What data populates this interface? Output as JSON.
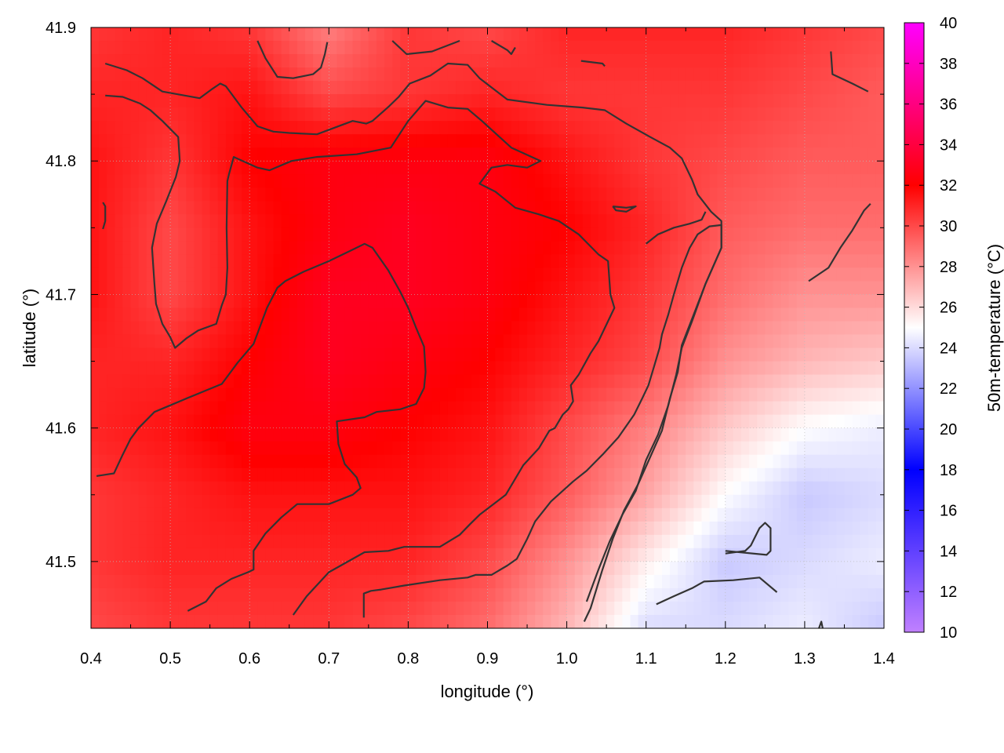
{
  "chart_data": {
    "type": "heatmap",
    "xlabel": "longitude (°)",
    "ylabel": "latitude (°)",
    "colorbar_label": "50m-temperature (°C)",
    "xlim": [
      0.4,
      1.4
    ],
    "ylim": [
      41.45,
      41.9
    ],
    "xticks": [
      "0.4",
      "0.5",
      "0.6",
      "0.7",
      "0.8",
      "0.9",
      "1.0",
      "1.1",
      "1.2",
      "1.3",
      "1.4"
    ],
    "yticks": [
      "41.5",
      "41.6",
      "41.7",
      "41.8",
      "41.9"
    ],
    "colorbar_range": [
      10,
      40
    ],
    "colorbar_ticks": [
      "10",
      "12",
      "14",
      "16",
      "18",
      "20",
      "22",
      "24",
      "26",
      "28",
      "30",
      "32",
      "34",
      "36",
      "38",
      "40"
    ],
    "colormap": [
      {
        "value": 10,
        "color": "#c080ff"
      },
      {
        "value": 18,
        "color": "#0000ff"
      },
      {
        "value": 25,
        "color": "#ffffff"
      },
      {
        "value": 32,
        "color": "#ff0000"
      },
      {
        "value": 40,
        "color": "#ff00ff"
      }
    ],
    "grid": true,
    "grid_style": "dotted",
    "contour_color": "#333333",
    "temperature_grid": {
      "lon": [
        0.4,
        0.5,
        0.6,
        0.7,
        0.8,
        0.9,
        1.0,
        1.1,
        1.2,
        1.3,
        1.4
      ],
      "lat": [
        41.9,
        41.85,
        41.8,
        41.75,
        41.7,
        41.65,
        41.6,
        41.55,
        41.5,
        41.45
      ],
      "values": [
        [
          30.5,
          31.0,
          30.5,
          28.5,
          30.5,
          30.0,
          31.0,
          31.0,
          31.0,
          30.5,
          30.0
        ],
        [
          31.0,
          31.0,
          31.5,
          30.0,
          30.5,
          31.0,
          30.5,
          30.5,
          30.5,
          30.0,
          29.5
        ],
        [
          31.5,
          30.5,
          32.0,
          32.5,
          32.5,
          32.5,
          31.5,
          30.5,
          30.0,
          29.5,
          29.5
        ],
        [
          31.5,
          30.0,
          31.5,
          32.5,
          33.0,
          32.5,
          32.0,
          31.0,
          29.5,
          29.0,
          29.0
        ],
        [
          31.5,
          30.0,
          31.5,
          33.0,
          33.0,
          32.5,
          31.5,
          30.5,
          29.0,
          28.0,
          28.0
        ],
        [
          31.0,
          31.0,
          32.0,
          33.0,
          32.5,
          32.0,
          31.0,
          30.0,
          28.0,
          27.0,
          26.5
        ],
        [
          31.0,
          31.5,
          32.5,
          32.5,
          32.0,
          31.5,
          30.0,
          28.5,
          26.5,
          25.0,
          24.5
        ],
        [
          30.5,
          31.0,
          31.5,
          31.5,
          31.5,
          31.0,
          29.5,
          27.5,
          25.0,
          23.5,
          24.0
        ],
        [
          30.5,
          31.0,
          31.0,
          31.0,
          31.0,
          30.0,
          28.0,
          25.5,
          23.5,
          24.0,
          24.5
        ],
        [
          30.0,
          30.5,
          30.5,
          30.5,
          30.0,
          29.0,
          27.0,
          24.0,
          24.0,
          24.5,
          23.5
        ]
      ]
    },
    "contours": [
      [
        [
          0.418,
          41.873
        ],
        [
          0.445,
          41.868
        ],
        [
          0.465,
          41.862
        ],
        [
          0.49,
          41.852
        ],
        [
          0.537,
          41.847
        ],
        [
          0.553,
          41.854
        ],
        [
          0.563,
          41.858
        ],
        [
          0.57,
          41.856
        ],
        [
          0.59,
          41.84
        ],
        [
          0.61,
          41.826
        ],
        [
          0.63,
          41.822
        ],
        [
          0.65,
          41.821
        ],
        [
          0.685,
          41.82
        ],
        [
          0.73,
          41.83
        ],
        [
          0.747,
          41.828
        ],
        [
          0.755,
          41.83
        ],
        [
          0.776,
          41.841
        ],
        [
          0.788,
          41.848
        ],
        [
          0.802,
          41.858
        ],
        [
          0.828,
          41.864
        ],
        [
          0.85,
          41.873
        ],
        [
          0.875,
          41.872
        ],
        [
          0.89,
          41.862
        ],
        [
          0.925,
          41.846
        ],
        [
          0.975,
          41.842
        ],
        [
          1.02,
          41.84
        ],
        [
          1.048,
          41.838
        ],
        [
          1.075,
          41.828
        ],
        [
          1.105,
          41.818
        ],
        [
          1.13,
          41.81
        ],
        [
          1.145,
          41.802
        ],
        [
          1.158,
          41.786
        ],
        [
          1.165,
          41.775
        ],
        [
          1.182,
          41.762
        ],
        [
          1.195,
          41.755
        ],
        [
          1.195,
          41.735
        ],
        [
          1.175,
          41.708
        ],
        [
          1.16,
          41.685
        ],
        [
          1.145,
          41.662
        ],
        [
          1.14,
          41.642
        ],
        [
          1.13,
          41.622
        ],
        [
          1.12,
          41.598
        ],
        [
          1.105,
          41.578
        ],
        [
          1.09,
          41.558
        ],
        [
          1.072,
          41.538
        ],
        [
          1.058,
          41.517
        ],
        [
          1.045,
          41.494
        ],
        [
          1.03,
          41.465
        ],
        [
          1.022,
          41.455
        ]
      ],
      [
        [
          0.418,
          41.849
        ],
        [
          0.44,
          41.848
        ],
        [
          0.462,
          41.843
        ],
        [
          0.475,
          41.838
        ],
        [
          0.49,
          41.83
        ],
        [
          0.51,
          41.818
        ],
        [
          0.512,
          41.8
        ],
        [
          0.507,
          41.788
        ],
        [
          0.495,
          41.77
        ],
        [
          0.483,
          41.753
        ],
        [
          0.477,
          41.735
        ],
        [
          0.48,
          41.708
        ],
        [
          0.482,
          41.693
        ],
        [
          0.49,
          41.678
        ],
        [
          0.5,
          41.668
        ],
        [
          0.506,
          41.66
        ],
        [
          0.52,
          41.667
        ],
        [
          0.535,
          41.673
        ],
        [
          0.558,
          41.678
        ],
        [
          0.565,
          41.692
        ],
        [
          0.57,
          41.7
        ],
        [
          0.572,
          41.72
        ],
        [
          0.571,
          41.75
        ],
        [
          0.572,
          41.785
        ],
        [
          0.574,
          41.79
        ],
        [
          0.58,
          41.803
        ],
        [
          0.61,
          41.795
        ],
        [
          0.625,
          41.793
        ],
        [
          0.653,
          41.8
        ],
        [
          0.685,
          41.803
        ],
        [
          0.735,
          41.805
        ],
        [
          0.778,
          41.81
        ],
        [
          0.8,
          41.83
        ],
        [
          0.822,
          41.845
        ],
        [
          0.85,
          41.84
        ],
        [
          0.875,
          41.839
        ],
        [
          0.893,
          41.83
        ],
        [
          0.93,
          41.81
        ],
        [
          0.967,
          41.8
        ],
        [
          0.95,
          41.795
        ],
        [
          0.925,
          41.797
        ],
        [
          0.905,
          41.795
        ],
        [
          0.89,
          41.783
        ],
        [
          0.91,
          41.777
        ],
        [
          0.935,
          41.765
        ],
        [
          0.965,
          41.76
        ],
        [
          0.99,
          41.755
        ],
        [
          1.015,
          41.745
        ],
        [
          1.04,
          41.73
        ],
        [
          1.052,
          41.725
        ],
        [
          1.055,
          41.7
        ],
        [
          1.06,
          41.69
        ],
        [
          1.04,
          41.665
        ],
        [
          1.03,
          41.656
        ],
        [
          1.015,
          41.64
        ],
        [
          1.005,
          41.632
        ],
        [
          1.008,
          41.62
        ],
        [
          1.002,
          41.614
        ],
        [
          0.995,
          41.61
        ],
        [
          0.985,
          41.6
        ],
        [
          0.978,
          41.598
        ],
        [
          0.965,
          41.585
        ],
        [
          0.945,
          41.572
        ],
        [
          0.923,
          41.55
        ],
        [
          0.89,
          41.535
        ],
        [
          0.878,
          41.528
        ],
        [
          0.865,
          41.52
        ],
        [
          0.84,
          41.511
        ],
        [
          0.795,
          41.511
        ],
        [
          0.775,
          41.508
        ],
        [
          0.745,
          41.507
        ],
        [
          0.7,
          41.492
        ],
        [
          0.672,
          41.474
        ],
        [
          0.655,
          41.46
        ]
      ],
      [
        [
          0.407,
          41.564
        ],
        [
          0.429,
          41.566
        ],
        [
          0.44,
          41.58
        ],
        [
          0.45,
          41.592
        ],
        [
          0.46,
          41.6
        ],
        [
          0.48,
          41.612
        ],
        [
          0.52,
          41.622
        ],
        [
          0.565,
          41.633
        ],
        [
          0.585,
          41.649
        ],
        [
          0.605,
          41.663
        ],
        [
          0.622,
          41.69
        ],
        [
          0.635,
          41.705
        ],
        [
          0.645,
          41.71
        ],
        [
          0.668,
          41.717
        ],
        [
          0.7,
          41.725
        ],
        [
          0.728,
          41.733
        ],
        [
          0.745,
          41.738
        ],
        [
          0.755,
          41.735
        ],
        [
          0.775,
          41.718
        ],
        [
          0.79,
          41.702
        ],
        [
          0.8,
          41.69
        ],
        [
          0.81,
          41.675
        ],
        [
          0.82,
          41.661
        ],
        [
          0.822,
          41.642
        ],
        [
          0.82,
          41.63
        ],
        [
          0.81,
          41.618
        ],
        [
          0.79,
          41.614
        ],
        [
          0.76,
          41.612
        ],
        [
          0.745,
          41.608
        ],
        [
          0.71,
          41.605
        ],
        [
          0.712,
          41.588
        ],
        [
          0.72,
          41.573
        ],
        [
          0.735,
          41.563
        ],
        [
          0.74,
          41.555
        ],
        [
          0.73,
          41.55
        ],
        [
          0.7,
          41.543
        ],
        [
          0.69,
          41.543
        ],
        [
          0.66,
          41.543
        ],
        [
          0.64,
          41.533
        ],
        [
          0.62,
          41.521
        ],
        [
          0.605,
          41.508
        ],
        [
          0.605,
          41.494
        ],
        [
          0.598,
          41.492
        ],
        [
          0.577,
          41.487
        ],
        [
          0.558,
          41.48
        ],
        [
          0.545,
          41.47
        ],
        [
          0.522,
          41.463
        ]
      ],
      [
        [
          0.744,
          41.458
        ],
        [
          0.744,
          41.476
        ],
        [
          0.753,
          41.478
        ],
        [
          0.766,
          41.479
        ],
        [
          0.795,
          41.482
        ],
        [
          0.84,
          41.486
        ],
        [
          0.875,
          41.488
        ],
        [
          0.885,
          41.49
        ],
        [
          0.905,
          41.49
        ],
        [
          0.925,
          41.497
        ],
        [
          0.937,
          41.502
        ],
        [
          0.95,
          41.517
        ],
        [
          0.96,
          41.53
        ],
        [
          0.98,
          41.545
        ],
        [
          1.008,
          41.56
        ],
        [
          1.025,
          41.568
        ],
        [
          1.045,
          41.58
        ],
        [
          1.065,
          41.593
        ],
        [
          1.085,
          41.61
        ],
        [
          1.095,
          41.622
        ],
        [
          1.103,
          41.632
        ],
        [
          1.11,
          41.646
        ],
        [
          1.117,
          41.66
        ],
        [
          1.12,
          41.67
        ],
        [
          1.128,
          41.685
        ],
        [
          1.135,
          41.7
        ],
        [
          1.145,
          41.72
        ],
        [
          1.155,
          41.735
        ],
        [
          1.165,
          41.745
        ],
        [
          1.18,
          41.751
        ],
        [
          1.195,
          41.752
        ],
        [
          1.195,
          41.735
        ],
        [
          1.175,
          41.708
        ],
        [
          1.158,
          41.68
        ],
        [
          1.145,
          41.66
        ],
        [
          1.138,
          41.64
        ],
        [
          1.128,
          41.617
        ],
        [
          1.115,
          41.595
        ],
        [
          1.1,
          41.576
        ],
        [
          1.087,
          41.553
        ],
        [
          1.07,
          41.535
        ],
        [
          1.054,
          41.515
        ],
        [
          1.04,
          41.494
        ],
        [
          1.025,
          41.47
        ]
      ],
      [
        [
          1.113,
          41.468
        ],
        [
          1.135,
          41.474
        ],
        [
          1.158,
          41.48
        ],
        [
          1.173,
          41.485
        ],
        [
          1.21,
          41.486
        ],
        [
          1.243,
          41.488
        ],
        [
          1.265,
          41.477
        ]
      ],
      [
        [
          1.2,
          41.506
        ],
        [
          1.225,
          41.508
        ],
        [
          1.232,
          41.512
        ],
        [
          1.243,
          41.525
        ],
        [
          1.25,
          41.529
        ],
        [
          1.257,
          41.525
        ],
        [
          1.257,
          41.508
        ],
        [
          1.252,
          41.505
        ],
        [
          1.2,
          41.508
        ]
      ],
      [
        [
          1.018,
          41.875
        ],
        [
          1.045,
          41.873
        ],
        [
          1.048,
          41.871
        ]
      ],
      [
        [
          1.058,
          41.766
        ],
        [
          1.075,
          41.765
        ],
        [
          1.087,
          41.766
        ],
        [
          1.075,
          41.762
        ],
        [
          1.062,
          41.763
        ],
        [
          1.058,
          41.766
        ]
      ],
      [
        [
          1.1,
          41.738
        ],
        [
          1.115,
          41.745
        ],
        [
          1.135,
          41.75
        ],
        [
          1.155,
          41.753
        ],
        [
          1.17,
          41.756
        ],
        [
          1.175,
          41.762
        ]
      ],
      [
        [
          1.305,
          41.71
        ],
        [
          1.33,
          41.72
        ],
        [
          1.345,
          41.735
        ],
        [
          1.36,
          41.748
        ],
        [
          1.375,
          41.763
        ],
        [
          1.383,
          41.768
        ]
      ],
      [
        [
          1.333,
          41.882
        ],
        [
          1.335,
          41.865
        ],
        [
          1.36,
          41.858
        ],
        [
          1.38,
          41.852
        ]
      ],
      [
        [
          0.415,
          41.769
        ],
        [
          0.418,
          41.766
        ],
        [
          0.418,
          41.755
        ],
        [
          0.415,
          41.749
        ]
      ],
      [
        [
          1.318,
          41.45
        ],
        [
          1.321,
          41.455
        ],
        [
          1.323,
          41.449
        ]
      ],
      [
        [
          0.61,
          41.89
        ],
        [
          0.62,
          41.877
        ],
        [
          0.635,
          41.863
        ],
        [
          0.655,
          41.862
        ],
        [
          0.68,
          41.865
        ],
        [
          0.69,
          41.87
        ],
        [
          0.695,
          41.88
        ],
        [
          0.698,
          41.889
        ]
      ],
      [
        [
          0.78,
          41.89
        ],
        [
          0.798,
          41.88
        ],
        [
          0.83,
          41.882
        ],
        [
          0.865,
          41.89
        ]
      ],
      [
        [
          0.905,
          41.89
        ],
        [
          0.925,
          41.883
        ],
        [
          0.93,
          41.88
        ],
        [
          0.935,
          41.885
        ]
      ]
    ]
  }
}
